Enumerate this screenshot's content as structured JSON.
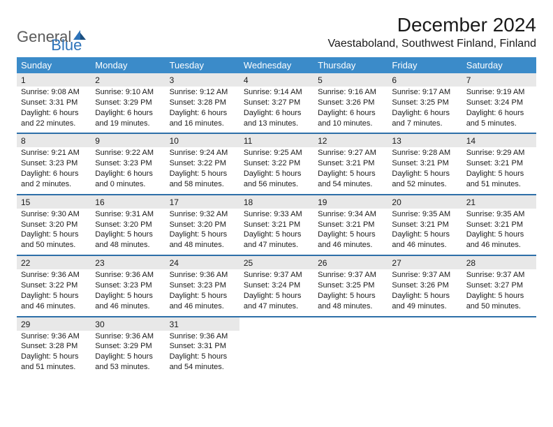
{
  "logo": {
    "text1": "General",
    "text2": "Blue"
  },
  "title": "December 2024",
  "location": "Vaestaboland, Southwest Finland, Finland",
  "colors": {
    "header_bg": "#3b8bc9",
    "header_text": "#ffffff",
    "divider": "#2d6fa8",
    "date_bg": "#e8e8e8",
    "body_text": "#1a1a1a",
    "logo_gray": "#5a5a5a",
    "logo_blue": "#2d73b9",
    "page_bg": "#ffffff"
  },
  "typography": {
    "title_fontsize": 28,
    "location_fontsize": 16,
    "dayheader_fontsize": 13,
    "date_fontsize": 12,
    "detail_fontsize": 11,
    "font_family": "Arial"
  },
  "layout": {
    "columns": 7,
    "rows": 5
  },
  "day_headers": [
    "Sunday",
    "Monday",
    "Tuesday",
    "Wednesday",
    "Thursday",
    "Friday",
    "Saturday"
  ],
  "weeks": [
    [
      {
        "date": "1",
        "sunrise": "Sunrise: 9:08 AM",
        "sunset": "Sunset: 3:31 PM",
        "daylight": "Daylight: 6 hours and 22 minutes."
      },
      {
        "date": "2",
        "sunrise": "Sunrise: 9:10 AM",
        "sunset": "Sunset: 3:29 PM",
        "daylight": "Daylight: 6 hours and 19 minutes."
      },
      {
        "date": "3",
        "sunrise": "Sunrise: 9:12 AM",
        "sunset": "Sunset: 3:28 PM",
        "daylight": "Daylight: 6 hours and 16 minutes."
      },
      {
        "date": "4",
        "sunrise": "Sunrise: 9:14 AM",
        "sunset": "Sunset: 3:27 PM",
        "daylight": "Daylight: 6 hours and 13 minutes."
      },
      {
        "date": "5",
        "sunrise": "Sunrise: 9:16 AM",
        "sunset": "Sunset: 3:26 PM",
        "daylight": "Daylight: 6 hours and 10 minutes."
      },
      {
        "date": "6",
        "sunrise": "Sunrise: 9:17 AM",
        "sunset": "Sunset: 3:25 PM",
        "daylight": "Daylight: 6 hours and 7 minutes."
      },
      {
        "date": "7",
        "sunrise": "Sunrise: 9:19 AM",
        "sunset": "Sunset: 3:24 PM",
        "daylight": "Daylight: 6 hours and 5 minutes."
      }
    ],
    [
      {
        "date": "8",
        "sunrise": "Sunrise: 9:21 AM",
        "sunset": "Sunset: 3:23 PM",
        "daylight": "Daylight: 6 hours and 2 minutes."
      },
      {
        "date": "9",
        "sunrise": "Sunrise: 9:22 AM",
        "sunset": "Sunset: 3:23 PM",
        "daylight": "Daylight: 6 hours and 0 minutes."
      },
      {
        "date": "10",
        "sunrise": "Sunrise: 9:24 AM",
        "sunset": "Sunset: 3:22 PM",
        "daylight": "Daylight: 5 hours and 58 minutes."
      },
      {
        "date": "11",
        "sunrise": "Sunrise: 9:25 AM",
        "sunset": "Sunset: 3:22 PM",
        "daylight": "Daylight: 5 hours and 56 minutes."
      },
      {
        "date": "12",
        "sunrise": "Sunrise: 9:27 AM",
        "sunset": "Sunset: 3:21 PM",
        "daylight": "Daylight: 5 hours and 54 minutes."
      },
      {
        "date": "13",
        "sunrise": "Sunrise: 9:28 AM",
        "sunset": "Sunset: 3:21 PM",
        "daylight": "Daylight: 5 hours and 52 minutes."
      },
      {
        "date": "14",
        "sunrise": "Sunrise: 9:29 AM",
        "sunset": "Sunset: 3:21 PM",
        "daylight": "Daylight: 5 hours and 51 minutes."
      }
    ],
    [
      {
        "date": "15",
        "sunrise": "Sunrise: 9:30 AM",
        "sunset": "Sunset: 3:20 PM",
        "daylight": "Daylight: 5 hours and 50 minutes."
      },
      {
        "date": "16",
        "sunrise": "Sunrise: 9:31 AM",
        "sunset": "Sunset: 3:20 PM",
        "daylight": "Daylight: 5 hours and 48 minutes."
      },
      {
        "date": "17",
        "sunrise": "Sunrise: 9:32 AM",
        "sunset": "Sunset: 3:20 PM",
        "daylight": "Daylight: 5 hours and 48 minutes."
      },
      {
        "date": "18",
        "sunrise": "Sunrise: 9:33 AM",
        "sunset": "Sunset: 3:21 PM",
        "daylight": "Daylight: 5 hours and 47 minutes."
      },
      {
        "date": "19",
        "sunrise": "Sunrise: 9:34 AM",
        "sunset": "Sunset: 3:21 PM",
        "daylight": "Daylight: 5 hours and 46 minutes."
      },
      {
        "date": "20",
        "sunrise": "Sunrise: 9:35 AM",
        "sunset": "Sunset: 3:21 PM",
        "daylight": "Daylight: 5 hours and 46 minutes."
      },
      {
        "date": "21",
        "sunrise": "Sunrise: 9:35 AM",
        "sunset": "Sunset: 3:21 PM",
        "daylight": "Daylight: 5 hours and 46 minutes."
      }
    ],
    [
      {
        "date": "22",
        "sunrise": "Sunrise: 9:36 AM",
        "sunset": "Sunset: 3:22 PM",
        "daylight": "Daylight: 5 hours and 46 minutes."
      },
      {
        "date": "23",
        "sunrise": "Sunrise: 9:36 AM",
        "sunset": "Sunset: 3:23 PM",
        "daylight": "Daylight: 5 hours and 46 minutes."
      },
      {
        "date": "24",
        "sunrise": "Sunrise: 9:36 AM",
        "sunset": "Sunset: 3:23 PM",
        "daylight": "Daylight: 5 hours and 46 minutes."
      },
      {
        "date": "25",
        "sunrise": "Sunrise: 9:37 AM",
        "sunset": "Sunset: 3:24 PM",
        "daylight": "Daylight: 5 hours and 47 minutes."
      },
      {
        "date": "26",
        "sunrise": "Sunrise: 9:37 AM",
        "sunset": "Sunset: 3:25 PM",
        "daylight": "Daylight: 5 hours and 48 minutes."
      },
      {
        "date": "27",
        "sunrise": "Sunrise: 9:37 AM",
        "sunset": "Sunset: 3:26 PM",
        "daylight": "Daylight: 5 hours and 49 minutes."
      },
      {
        "date": "28",
        "sunrise": "Sunrise: 9:37 AM",
        "sunset": "Sunset: 3:27 PM",
        "daylight": "Daylight: 5 hours and 50 minutes."
      }
    ],
    [
      {
        "date": "29",
        "sunrise": "Sunrise: 9:36 AM",
        "sunset": "Sunset: 3:28 PM",
        "daylight": "Daylight: 5 hours and 51 minutes."
      },
      {
        "date": "30",
        "sunrise": "Sunrise: 9:36 AM",
        "sunset": "Sunset: 3:29 PM",
        "daylight": "Daylight: 5 hours and 53 minutes."
      },
      {
        "date": "31",
        "sunrise": "Sunrise: 9:36 AM",
        "sunset": "Sunset: 3:31 PM",
        "daylight": "Daylight: 5 hours and 54 minutes."
      },
      null,
      null,
      null,
      null
    ]
  ]
}
